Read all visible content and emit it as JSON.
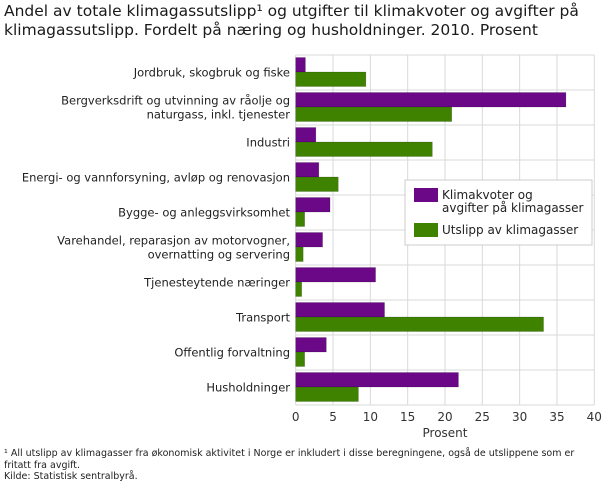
{
  "title": "Andel av totale klimagassutslipp¹ og utgifter til klimakvoter og avgifter på klimagassutslipp. Fordelt på næring og husholdninger. 2010. Prosent",
  "chart_data": {
    "type": "bar",
    "orientation": "horizontal",
    "title": "Andel av totale klimagassutslipp¹ og utgifter til klimakvoter og avgifter på klimagassutslipp. Fordelt på næring og husholdninger. 2010. Prosent",
    "categories": [
      [
        "Jordbruk, skogbruk og fiske"
      ],
      [
        "Bergverksdrift og utvinning av råolje og",
        "naturgass, inkl. tjenester"
      ],
      [
        "Industri"
      ],
      [
        "Energi- og vannforsyning, avløp og renovasjon"
      ],
      [
        "Bygge- og anleggsvirksomhet"
      ],
      [
        "Varehandel, reparasjon av motorvogner,",
        "overnatting og servering"
      ],
      [
        "Tjenesteytende næringer"
      ],
      [
        "Transport"
      ],
      [
        "Offentlig forvaltning"
      ],
      [
        "Husholdninger"
      ]
    ],
    "series": [
      {
        "name": "Klimakvoter og avgifter på klimagasser",
        "name_lines": [
          "Klimakvoter og",
          "avgifter på klimagasser"
        ],
        "color": "#6a0888",
        "values": [
          1.3,
          36.2,
          2.7,
          3.1,
          4.6,
          3.6,
          10.7,
          11.9,
          4.1,
          21.8
        ]
      },
      {
        "name": "Utslipp av klimagasser",
        "name_lines": [
          "Utslipp av klimagasser"
        ],
        "color": "#3f8200",
        "values": [
          9.4,
          20.9,
          18.3,
          5.7,
          1.2,
          1.0,
          0.8,
          33.2,
          1.2,
          8.4
        ]
      }
    ],
    "xlabel": "Prosent",
    "xlim": [
      0,
      40
    ],
    "xticks": [
      0,
      5,
      10,
      15,
      20,
      25,
      30,
      35,
      40
    ],
    "grid": true,
    "legend": "right-middle"
  },
  "notes": {
    "footnote": "¹ All utslipp av klimagasser fra økonomisk aktivitet i Norge er inkludert i disse beregningene, også de utslippene som er fritatt fra avgift.",
    "source": "Kilde: Statistisk sentralbyrå."
  }
}
